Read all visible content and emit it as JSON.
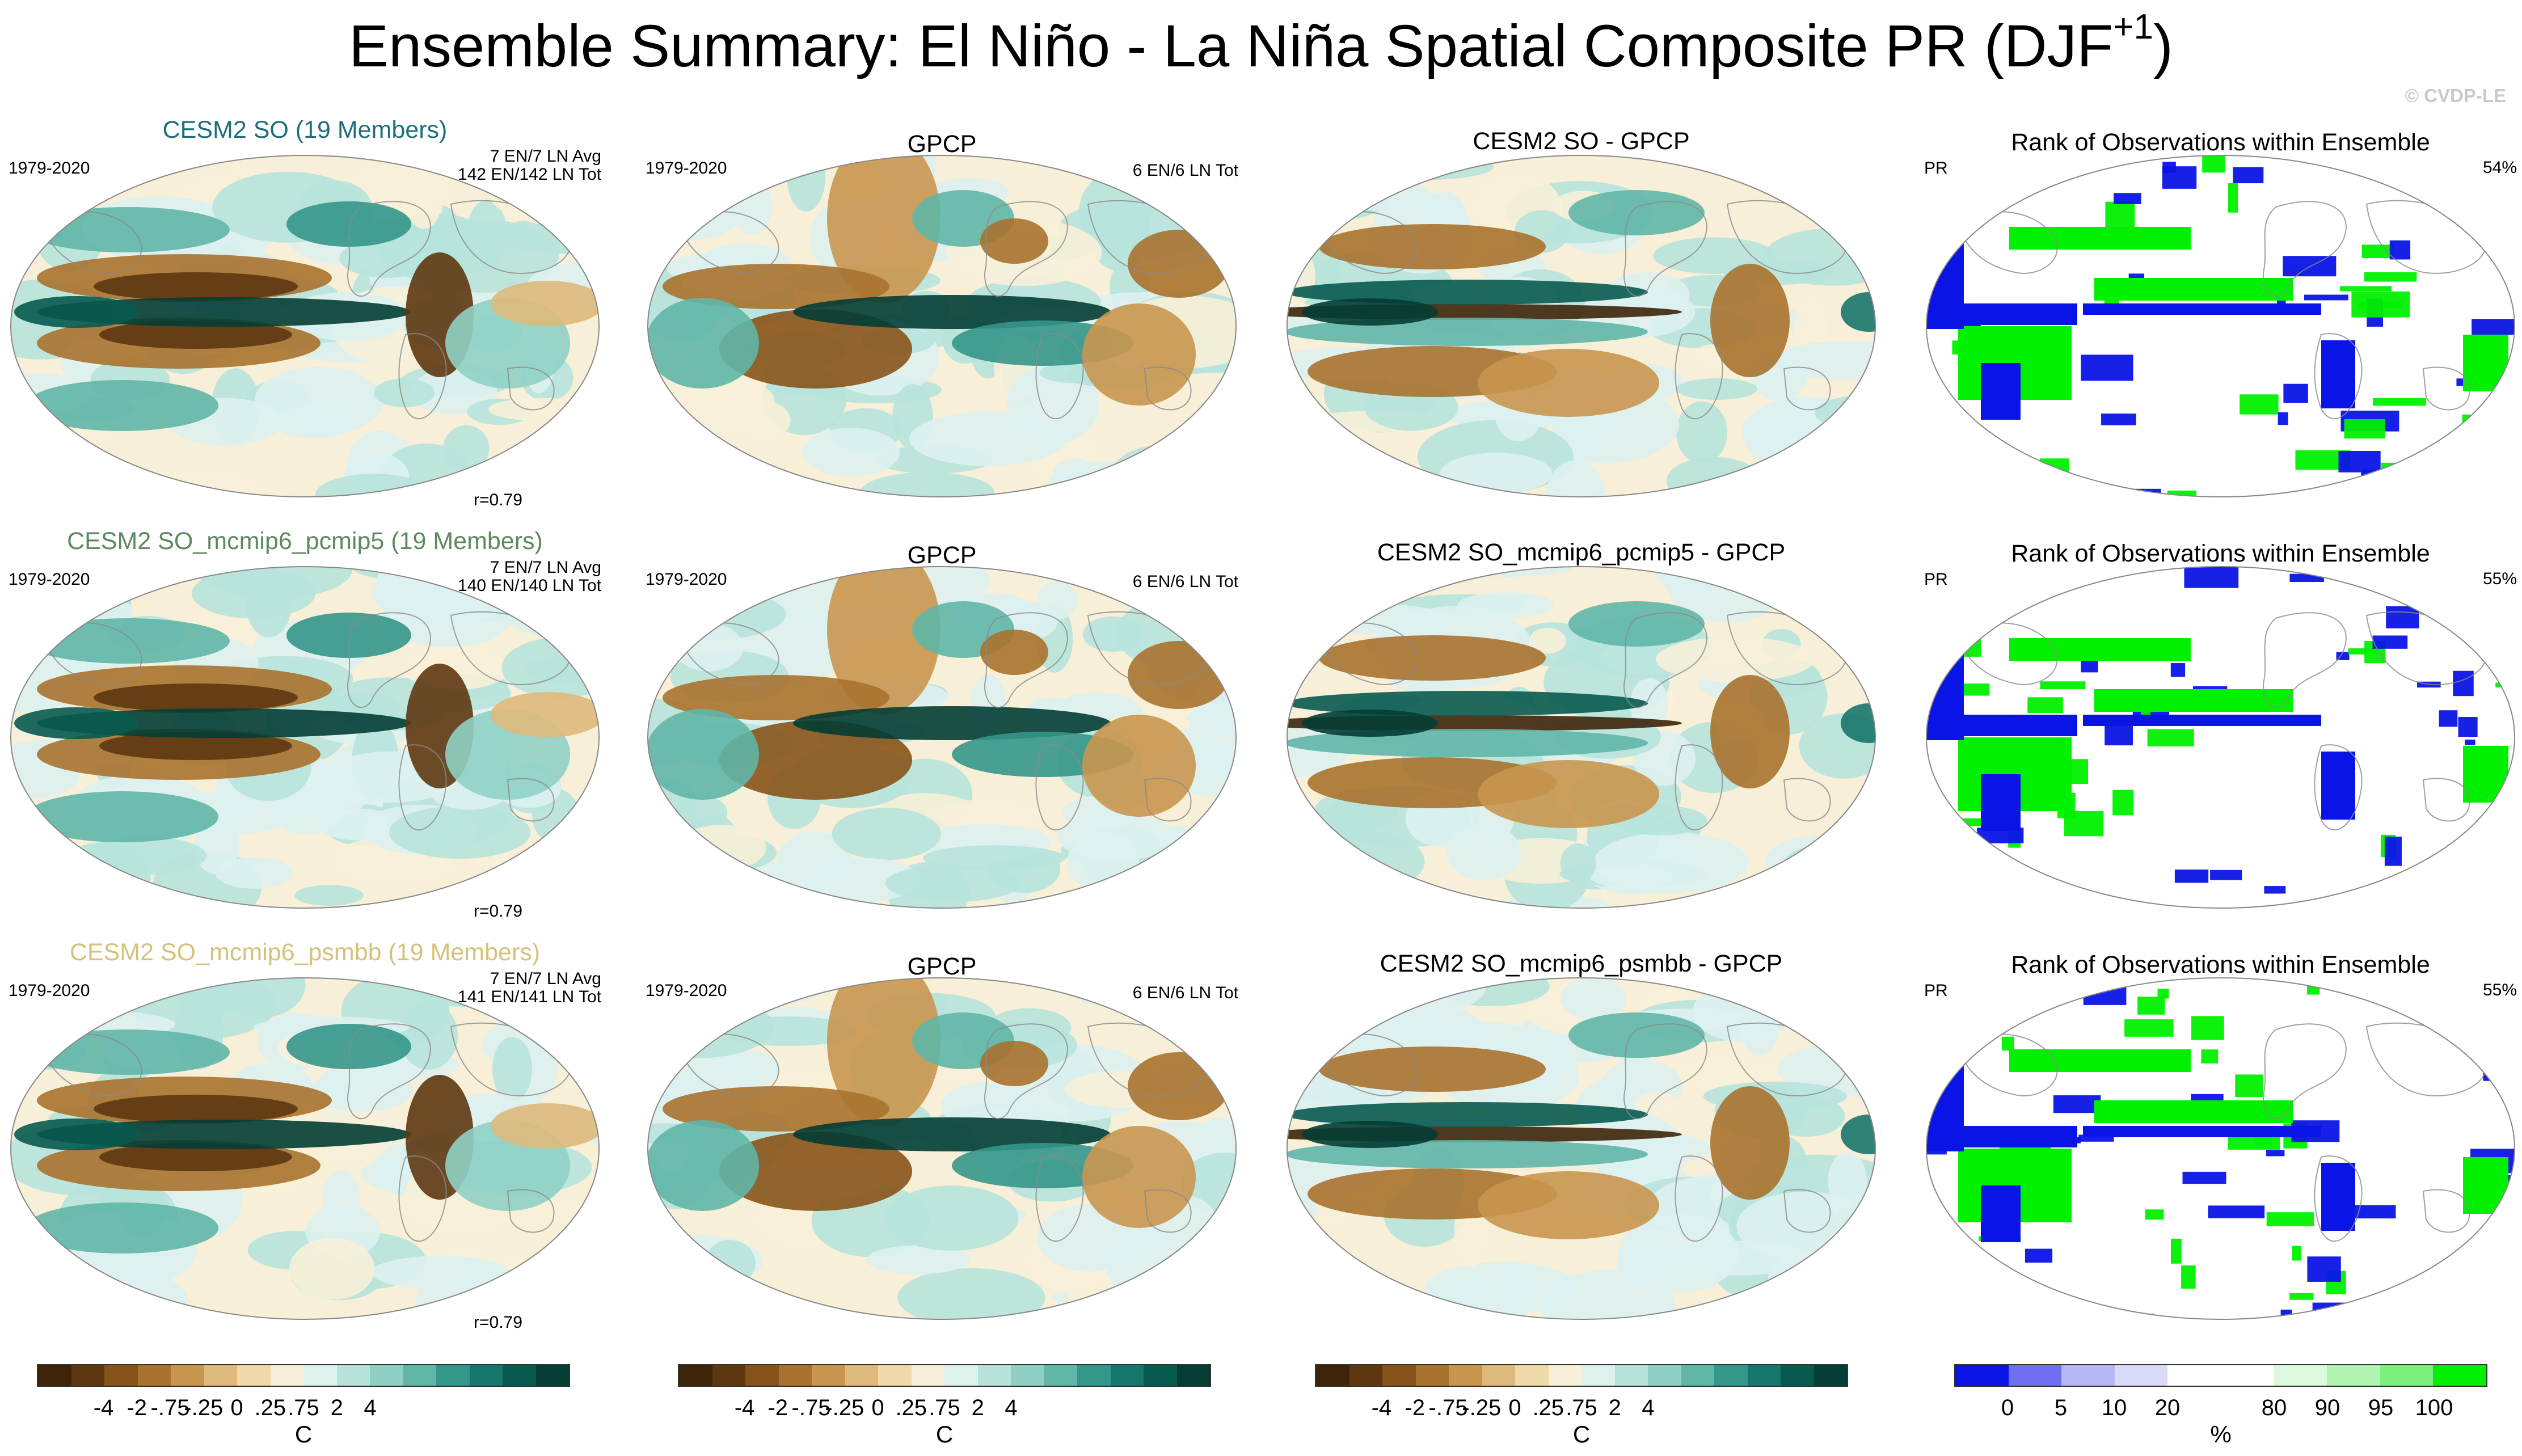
{
  "figure": {
    "title": "Ensemble Summary: El Niño - La Niña Spatial Composite PR (DJF",
    "title_sup": "+1",
    "title_close": ")",
    "credit": "© CVDP-LE"
  },
  "colors": {
    "brown_teal": [
      "#3d2409",
      "#5e3711",
      "#88531a",
      "#a8722e",
      "#c9964f",
      "#deb97b",
      "#eed9a8",
      "#f7efd8",
      "#ddf1ef",
      "#b7e3db",
      "#8fd0c4",
      "#61b6a7",
      "#35968a",
      "#17766b",
      "#085a4f",
      "#033d34"
    ],
    "rank": [
      "#0a14e6",
      "#6e70f0",
      "#b4b6f5",
      "#d9dbfa",
      "#ffffff",
      "#ffffff",
      "#dcfadc",
      "#b0f5b0",
      "#7cf07c",
      "#00f000"
    ],
    "model_titles": [
      "#1f6e7a",
      "#5c8a5e",
      "#d4c27a"
    ],
    "rank_blue": "#0a14e6",
    "rank_green": "#00f000",
    "land_outline": "#8a8a8a"
  },
  "rows": [
    {
      "model_title": "CESM2 SO (19 Members)",
      "period": "1979-2020",
      "avg_line": "7 EN/7 LN Avg",
      "tot_line": "142 EN/142 LN Tot",
      "r_value": "r=0.79",
      "obs_title": "GPCP",
      "obs_period": "1979-2020",
      "obs_tot": "6 EN/6 LN Tot",
      "diff_title": "CESM2 SO - GPCP",
      "rank_title": "Rank of Observations within Ensemble",
      "rank_var": "PR",
      "rank_pct": "54%"
    },
    {
      "model_title": "CESM2 SO_mcmip6_pcmip5 (19 Members)",
      "period": "1979-2020",
      "avg_line": "7 EN/7 LN Avg",
      "tot_line": "140 EN/140 LN Tot",
      "r_value": "r=0.79",
      "obs_title": "GPCP",
      "obs_period": "1979-2020",
      "obs_tot": "6 EN/6 LN Tot",
      "diff_title": "CESM2 SO_mcmip6_pcmip5 - GPCP",
      "rank_title": "Rank of Observations within Ensemble",
      "rank_var": "PR",
      "rank_pct": "55%"
    },
    {
      "model_title": "CESM2 SO_mcmip6_psmbb (19 Members)",
      "period": "1979-2020",
      "avg_line": "7 EN/7 LN Avg",
      "tot_line": "141 EN/141 LN Tot",
      "r_value": "r=0.79",
      "obs_title": "GPCP",
      "obs_period": "1979-2020",
      "obs_tot": "6 EN/6 LN Tot",
      "diff_title": "CESM2 SO_mcmip6_psmbb - GPCP",
      "rank_title": "Rank of Observations within Ensemble",
      "rank_var": "PR",
      "rank_pct": "55%"
    }
  ],
  "colorbars": [
    {
      "labels": [
        "-4",
        "-2",
        "-.75",
        "-.25",
        "0",
        ".25",
        ".75",
        "2",
        "4"
      ],
      "unit": "C"
    },
    {
      "labels": [
        "-4",
        "-2",
        "-.75",
        "-.25",
        "0",
        ".25",
        ".75",
        "2",
        "4"
      ],
      "unit": "C"
    },
    {
      "labels": [
        "-4",
        "-2",
        "-.75",
        "-.25",
        "0",
        ".25",
        ".75",
        "2",
        "4"
      ],
      "unit": "C"
    },
    {
      "labels": [
        "0",
        "5",
        "10",
        "20",
        "80",
        "90",
        "95",
        "100"
      ],
      "unit": "%"
    }
  ],
  "chart_data": [
    {
      "type": "heatmap",
      "description_title": "El Niño - La Niña composite PR maps (ensemble mean, observations, difference)",
      "colorbar_levels": [
        -4,
        -2,
        -0.75,
        -0.25,
        0,
        0.25,
        0.75,
        2,
        4
      ],
      "colorbar_unit": "C",
      "pattern_correlation": [
        0.79,
        0.79,
        0.79
      ],
      "el_nino_events": [
        7,
        7,
        7
      ],
      "la_nina_events": [
        7,
        7,
        7
      ],
      "el_nino_total": [
        142,
        140,
        141
      ],
      "la_nina_total": [
        142,
        140,
        141
      ],
      "obs_el_nino_total": 6,
      "obs_la_nina_total": 6
    },
    {
      "type": "heatmap",
      "description_title": "Rank of Observations within Ensemble",
      "colorbar_levels": [
        0,
        5,
        10,
        20,
        80,
        90,
        95,
        100
      ],
      "colorbar_unit": "%",
      "percent_within_range": [
        54,
        55,
        55
      ]
    }
  ]
}
